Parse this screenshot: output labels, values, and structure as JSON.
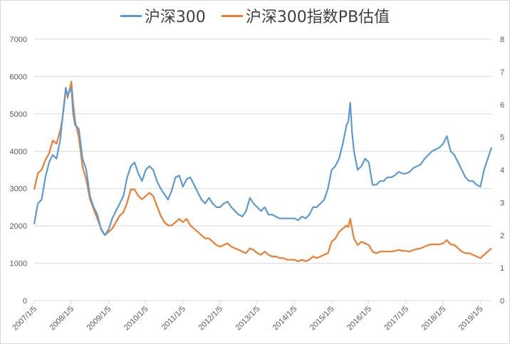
{
  "chart_data": {
    "type": "line",
    "title": "",
    "legend_position": "top",
    "grid": true,
    "xlabel": "",
    "ylabel_left": "",
    "ylabel_right": "",
    "x_tick_labels": [
      "2007/1/5",
      "2008/1/5",
      "2009/1/5",
      "2010/1/5",
      "2011/1/5",
      "2012/1/5",
      "2013/1/5",
      "2014/1/5",
      "2015/1/5",
      "2016/1/5",
      "2017/1/5",
      "2018/1/5",
      "2019/1/5"
    ],
    "y_left": {
      "min": 0,
      "max": 7000,
      "ticks": [
        0,
        1000,
        2000,
        3000,
        4000,
        5000,
        6000,
        7000
      ]
    },
    "y_right": {
      "min": 0,
      "max": 8,
      "ticks": [
        0,
        1,
        2,
        3,
        4,
        5,
        6,
        7,
        8
      ]
    },
    "x": [
      2007.0,
      2007.1,
      2007.2,
      2007.3,
      2007.4,
      2007.5,
      2007.6,
      2007.7,
      2007.75,
      2007.8,
      2007.85,
      2007.9,
      2008.0,
      2008.05,
      2008.1,
      2008.2,
      2008.3,
      2008.4,
      2008.5,
      2008.6,
      2008.7,
      2008.8,
      2008.9,
      2009.0,
      2009.1,
      2009.2,
      2009.3,
      2009.4,
      2009.5,
      2009.6,
      2009.7,
      2009.8,
      2009.9,
      2010.0,
      2010.1,
      2010.2,
      2010.3,
      2010.4,
      2010.5,
      2010.6,
      2010.7,
      2010.8,
      2010.9,
      2011.0,
      2011.1,
      2011.2,
      2011.3,
      2011.4,
      2011.5,
      2011.6,
      2011.7,
      2011.8,
      2011.9,
      2012.0,
      2012.1,
      2012.2,
      2012.3,
      2012.4,
      2012.5,
      2012.6,
      2012.7,
      2012.8,
      2012.9,
      2013.0,
      2013.1,
      2013.2,
      2013.3,
      2013.4,
      2013.5,
      2013.6,
      2013.7,
      2013.8,
      2013.9,
      2014.0,
      2014.1,
      2014.2,
      2014.3,
      2014.4,
      2014.5,
      2014.6,
      2014.7,
      2014.8,
      2014.9,
      2015.0,
      2015.1,
      2015.2,
      2015.3,
      2015.4,
      2015.45,
      2015.5,
      2015.55,
      2015.6,
      2015.7,
      2015.8,
      2015.9,
      2016.0,
      2016.1,
      2016.2,
      2016.3,
      2016.4,
      2016.5,
      2016.6,
      2016.7,
      2016.8,
      2016.9,
      2017.0,
      2017.1,
      2017.2,
      2017.3,
      2017.4,
      2017.5,
      2017.6,
      2017.7,
      2017.8,
      2017.9,
      2018.0,
      2018.1,
      2018.2,
      2018.3,
      2018.4,
      2018.5,
      2018.6,
      2018.7,
      2018.8,
      2018.9,
      2019.0,
      2019.1,
      2019.2,
      2019.3
    ],
    "series": [
      {
        "name": "沪深300",
        "axis": "left",
        "color": "#5b9bd5",
        "values": [
          2050,
          2600,
          2700,
          3300,
          3700,
          3900,
          3800,
          4300,
          4800,
          5200,
          5700,
          5500,
          5700,
          5000,
          4700,
          4600,
          3800,
          3500,
          2800,
          2500,
          2300,
          1900,
          1750,
          1900,
          2200,
          2400,
          2600,
          2800,
          3300,
          3600,
          3700,
          3400,
          3200,
          3500,
          3600,
          3500,
          3200,
          3000,
          2850,
          2700,
          2950,
          3300,
          3350,
          3050,
          3250,
          3300,
          3100,
          2900,
          2700,
          2600,
          2750,
          2600,
          2500,
          2500,
          2600,
          2650,
          2500,
          2400,
          2300,
          2250,
          2400,
          2750,
          2600,
          2500,
          2400,
          2500,
          2300,
          2300,
          2250,
          2200,
          2200,
          2200,
          2200,
          2200,
          2150,
          2250,
          2200,
          2300,
          2500,
          2500,
          2600,
          2700,
          3000,
          3500,
          3600,
          3800,
          4200,
          4700,
          4800,
          5300,
          4500,
          4000,
          3500,
          3600,
          3800,
          3700,
          3100,
          3100,
          3200,
          3200,
          3300,
          3300,
          3350,
          3450,
          3400,
          3400,
          3450,
          3550,
          3600,
          3650,
          3800,
          3900,
          4000,
          4050,
          4100,
          4200,
          4400,
          4000,
          3900,
          3700,
          3500,
          3300,
          3200,
          3200,
          3100,
          3050,
          3500,
          3800,
          4100
        ]
      },
      {
        "name": "沪深300指数PB估值",
        "axis": "right",
        "color": "#ed7d31",
        "values": [
          3.4,
          3.9,
          4.0,
          4.3,
          4.5,
          4.9,
          4.8,
          5.2,
          5.5,
          6.0,
          6.5,
          6.2,
          6.7,
          6.0,
          5.5,
          5.0,
          4.1,
          3.7,
          3.1,
          2.8,
          2.5,
          2.2,
          2.0,
          2.1,
          2.2,
          2.4,
          2.6,
          2.7,
          3.0,
          3.4,
          3.4,
          3.2,
          3.1,
          3.2,
          3.3,
          3.2,
          2.9,
          2.6,
          2.4,
          2.3,
          2.3,
          2.4,
          2.5,
          2.4,
          2.5,
          2.3,
          2.2,
          2.1,
          2.0,
          1.9,
          1.9,
          1.8,
          1.7,
          1.65,
          1.7,
          1.75,
          1.65,
          1.6,
          1.55,
          1.5,
          1.45,
          1.6,
          1.55,
          1.45,
          1.4,
          1.5,
          1.4,
          1.35,
          1.35,
          1.3,
          1.3,
          1.25,
          1.25,
          1.25,
          1.2,
          1.25,
          1.2,
          1.25,
          1.35,
          1.3,
          1.35,
          1.4,
          1.45,
          1.8,
          1.9,
          2.1,
          2.2,
          2.3,
          2.25,
          2.5,
          2.2,
          1.9,
          1.7,
          1.8,
          1.75,
          1.7,
          1.5,
          1.45,
          1.5,
          1.5,
          1.5,
          1.5,
          1.52,
          1.55,
          1.52,
          1.52,
          1.5,
          1.55,
          1.58,
          1.6,
          1.65,
          1.7,
          1.72,
          1.72,
          1.72,
          1.75,
          1.85,
          1.72,
          1.7,
          1.6,
          1.5,
          1.45,
          1.45,
          1.4,
          1.35,
          1.3,
          1.4,
          1.5,
          1.6
        ]
      }
    ]
  }
}
